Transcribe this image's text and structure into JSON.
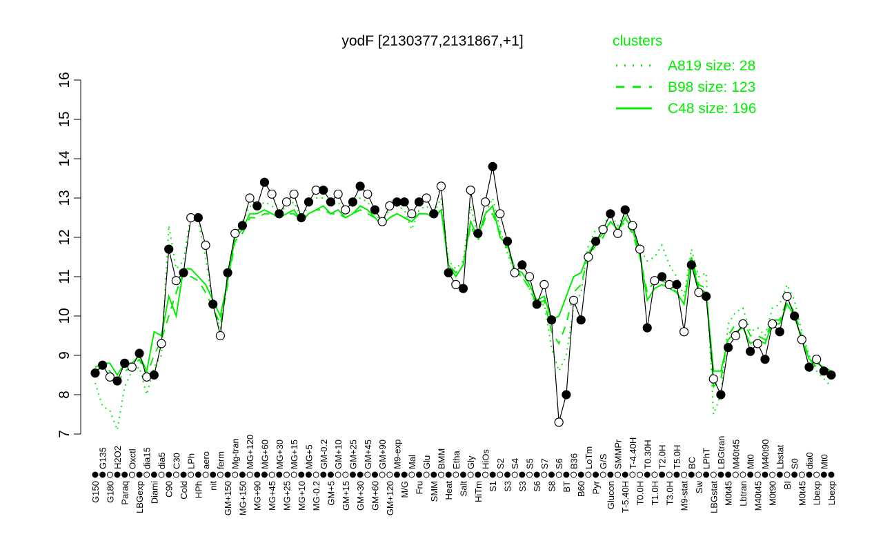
{
  "chart_data": {
    "type": "line",
    "title": "yodF [2130377,2131867,+1]",
    "xlabel": "",
    "ylabel": "",
    "ylim": [
      7,
      16
    ],
    "yticks": [
      7,
      8,
      9,
      10,
      11,
      12,
      13,
      14,
      15,
      16
    ],
    "grid": false,
    "legend": {
      "title": "clusters",
      "placement": "top-right",
      "color": "#00ee00",
      "entries": [
        {
          "key": "a819",
          "label": "A819 size: 28",
          "style": "dotted"
        },
        {
          "key": "b98",
          "label": "B98 size: 123",
          "style": "dashed"
        },
        {
          "key": "c48",
          "label": "C48 size: 196",
          "style": "solid"
        }
      ]
    },
    "point_fields": [
      "label",
      "value",
      "filled",
      "c48",
      "b98",
      "a819"
    ],
    "points": [
      [
        "G150",
        8.55,
        1,
        8.7,
        8.6,
        8.3
      ],
      [
        "G135",
        8.75,
        1,
        8.8,
        8.7,
        7.7
      ],
      [
        "G180",
        8.45,
        0,
        8.8,
        8.6,
        7.6
      ],
      [
        "H2O2",
        8.35,
        1,
        8.5,
        8.3,
        7.1
      ],
      [
        "Paraq",
        8.8,
        1,
        8.8,
        8.6,
        8.2
      ],
      [
        "Oxctl",
        8.7,
        0,
        8.8,
        8.7,
        8.6
      ],
      [
        "LBGexp",
        9.05,
        1,
        9.0,
        8.9,
        8.7
      ],
      [
        "dia15",
        8.45,
        0,
        8.6,
        8.5,
        8.0
      ],
      [
        "Diami",
        8.5,
        1,
        9.6,
        9.0,
        8.7
      ],
      [
        "dia5",
        9.3,
        0,
        9.5,
        9.4,
        9.0
      ],
      [
        "C90",
        11.7,
        1,
        10.5,
        10.0,
        12.3
      ],
      [
        "C30",
        10.9,
        0,
        10.0,
        10.6,
        11.2
      ],
      [
        "Cold",
        11.1,
        1,
        11.2,
        11.1,
        11.4
      ],
      [
        "LPh",
        12.5,
        0,
        11.2,
        11.0,
        12.6
      ],
      [
        "HPh",
        12.5,
        1,
        11.0,
        10.9,
        12.4
      ],
      [
        "aero",
        11.8,
        0,
        10.8,
        10.6,
        11.5
      ],
      [
        "nit",
        10.3,
        1,
        10.4,
        10.2,
        10.2
      ],
      [
        "ferm",
        9.5,
        0,
        10.0,
        9.8,
        9.7
      ],
      [
        "GM+150",
        11.1,
        1,
        10.9,
        10.8,
        10.9
      ],
      [
        "Mg-tran",
        12.1,
        0,
        12.0,
        11.9,
        12.1
      ],
      [
        "MG+150",
        12.3,
        1,
        12.2,
        12.1,
        12.4
      ],
      [
        "MG+120",
        13.0,
        0,
        12.6,
        12.5,
        12.8
      ],
      [
        "MG+90",
        12.8,
        1,
        12.6,
        12.5,
        12.7
      ],
      [
        "MG+60",
        13.4,
        1,
        12.7,
        12.6,
        12.9
      ],
      [
        "MG+45",
        13.1,
        0,
        12.6,
        12.6,
        12.8
      ],
      [
        "MG+30",
        12.6,
        1,
        12.5,
        12.5,
        12.6
      ],
      [
        "MG+25",
        12.9,
        0,
        12.6,
        12.6,
        12.8
      ],
      [
        "MG+15",
        13.1,
        0,
        12.7,
        12.6,
        12.9
      ],
      [
        "MG+10",
        12.5,
        1,
        12.4,
        12.4,
        12.5
      ],
      [
        "MG+5",
        12.9,
        1,
        12.6,
        12.6,
        12.8
      ],
      [
        "MG-0.2",
        13.2,
        0,
        12.7,
        12.7,
        13.0
      ],
      [
        "GM-0.2",
        13.2,
        1,
        12.8,
        12.7,
        13.0
      ],
      [
        "GM+5",
        12.9,
        1,
        12.6,
        12.6,
        12.8
      ],
      [
        "GM+10",
        13.1,
        0,
        12.7,
        12.6,
        12.9
      ],
      [
        "GM+15",
        12.7,
        0,
        12.5,
        12.5,
        12.6
      ],
      [
        "GM+25",
        12.9,
        1,
        12.6,
        12.6,
        12.8
      ],
      [
        "GM+30",
        13.3,
        1,
        12.8,
        12.7,
        13.0
      ],
      [
        "GM+45",
        13.1,
        0,
        12.7,
        12.6,
        12.9
      ],
      [
        "GM+60",
        12.7,
        1,
        12.5,
        12.5,
        12.6
      ],
      [
        "GM+90",
        12.4,
        0,
        12.3,
        12.3,
        12.4
      ],
      [
        "GM+120",
        12.8,
        0,
        12.5,
        12.5,
        12.7
      ],
      [
        "M9-exp",
        12.9,
        1,
        12.6,
        12.6,
        12.8
      ],
      [
        "M/G",
        12.9,
        1,
        12.5,
        12.5,
        12.7
      ],
      [
        "Mal",
        12.6,
        0,
        12.4,
        12.4,
        12.2
      ],
      [
        "Fru",
        12.9,
        1,
        12.6,
        12.6,
        12.7
      ],
      [
        "Glu",
        13.0,
        0,
        12.6,
        12.6,
        12.8
      ],
      [
        "SMM",
        12.6,
        1,
        12.5,
        12.5,
        12.6
      ],
      [
        "BMM",
        13.3,
        0,
        12.7,
        12.7,
        13.0
      ],
      [
        "Heat",
        11.1,
        1,
        11.3,
        11.3,
        11.4
      ],
      [
        "Etha",
        10.8,
        0,
        11.0,
        11.1,
        11.2
      ],
      [
        "Salt",
        10.7,
        1,
        11.3,
        11.3,
        11.4
      ],
      [
        "Gly",
        13.2,
        0,
        12.4,
        12.3,
        12.8
      ],
      [
        "HiTm",
        12.1,
        1,
        12.0,
        11.9,
        12.0
      ],
      [
        "HiOs",
        12.9,
        0,
        12.6,
        12.5,
        12.6
      ],
      [
        "S1",
        13.8,
        1,
        12.8,
        12.6,
        13.0
      ],
      [
        "S2",
        12.6,
        0,
        12.0,
        12.1,
        12.2
      ],
      [
        "S3",
        11.9,
        1,
        11.8,
        11.7,
        11.6
      ],
      [
        "S4",
        11.1,
        0,
        11.2,
        11.2,
        11.1
      ],
      [
        "S3",
        11.3,
        1,
        11.1,
        11.0,
        11.0
      ],
      [
        "S5",
        11.0,
        0,
        10.8,
        10.7,
        10.7
      ],
      [
        "S6",
        10.3,
        1,
        10.4,
        10.3,
        10.2
      ],
      [
        "S7",
        10.8,
        0,
        10.5,
        10.4,
        10.3
      ],
      [
        "S8",
        9.9,
        1,
        9.9,
        9.6,
        9.2
      ],
      [
        "S6",
        7.3,
        0,
        10.0,
        9.3,
        8.6
      ],
      [
        "BT",
        8.0,
        1,
        10.5,
        9.8,
        9.0
      ],
      [
        "B36",
        10.4,
        0,
        11.0,
        10.6,
        10.2
      ],
      [
        "B60",
        9.9,
        1,
        11.1,
        10.8,
        10.6
      ],
      [
        "LoTm",
        11.5,
        0,
        11.6,
        11.5,
        11.8
      ],
      [
        "Pyr",
        11.9,
        1,
        11.9,
        11.8,
        12.2
      ],
      [
        "G/S",
        12.2,
        0,
        12.1,
        12.0,
        12.3
      ],
      [
        "Glucon",
        12.6,
        1,
        12.4,
        12.4,
        12.6
      ],
      [
        "SMMPr",
        12.1,
        0,
        12.2,
        12.2,
        12.3
      ],
      [
        "T-5.40H",
        12.7,
        1,
        12.5,
        12.4,
        12.6
      ],
      [
        "T-4.40H",
        12.3,
        0,
        12.2,
        12.1,
        12.3
      ],
      [
        "T0.0H",
        11.7,
        0,
        11.6,
        11.5,
        11.7
      ],
      [
        "T0.30H",
        9.7,
        1,
        10.4,
        10.6,
        11.4
      ],
      [
        "T1.0H",
        10.9,
        0,
        10.7,
        10.9,
        11.5
      ],
      [
        "T2.0H",
        11.0,
        1,
        10.8,
        10.9,
        11.8
      ],
      [
        "T3.0H",
        10.8,
        0,
        10.7,
        10.8,
        11.3
      ],
      [
        "T5.0H",
        10.8,
        1,
        10.6,
        10.6,
        11.0
      ],
      [
        "M9-stat",
        9.6,
        0,
        10.3,
        10.3,
        10.5
      ],
      [
        "BC",
        11.3,
        1,
        11.4,
        11.5,
        11.7
      ],
      [
        "Sw",
        10.6,
        0,
        10.7,
        10.8,
        11.0
      ],
      [
        "LPhT",
        10.5,
        1,
        10.6,
        10.7,
        11.1
      ],
      [
        "LBGstat",
        8.4,
        0,
        8.6,
        8.2,
        7.5
      ],
      [
        "LBGtran",
        8.0,
        1,
        8.6,
        8.4,
        8.0
      ],
      [
        "M0t45",
        9.2,
        1,
        9.4,
        9.5,
        9.8
      ],
      [
        "M40t45",
        9.5,
        0,
        9.6,
        9.8,
        10.1
      ],
      [
        "Lbtran",
        9.8,
        0,
        9.7,
        9.9,
        10.2
      ],
      [
        "Mt0",
        9.1,
        1,
        9.3,
        9.5,
        9.6
      ],
      [
        "M40t45",
        9.3,
        0,
        9.4,
        9.5,
        9.7
      ],
      [
        "M40t90",
        8.9,
        1,
        9.3,
        9.4,
        9.5
      ],
      [
        "M0t90",
        9.8,
        0,
        9.8,
        9.9,
        10.2
      ],
      [
        "Lbstat",
        9.6,
        1,
        9.8,
        9.9,
        10.3
      ],
      [
        "BI",
        10.5,
        0,
        10.3,
        10.4,
        10.8
      ],
      [
        "S0",
        10.0,
        1,
        10.0,
        10.1,
        10.4
      ],
      [
        "M0t45",
        9.4,
        0,
        9.4,
        9.5,
        9.6
      ],
      [
        "dia0",
        8.7,
        1,
        8.9,
        8.9,
        9.0
      ],
      [
        "Lbexp",
        8.9,
        0,
        8.8,
        8.7,
        8.6
      ],
      [
        "Mt0",
        8.6,
        1,
        8.7,
        8.6,
        8.4
      ],
      [
        "Lbexp",
        8.5,
        1,
        8.6,
        8.5,
        8.2
      ]
    ]
  }
}
